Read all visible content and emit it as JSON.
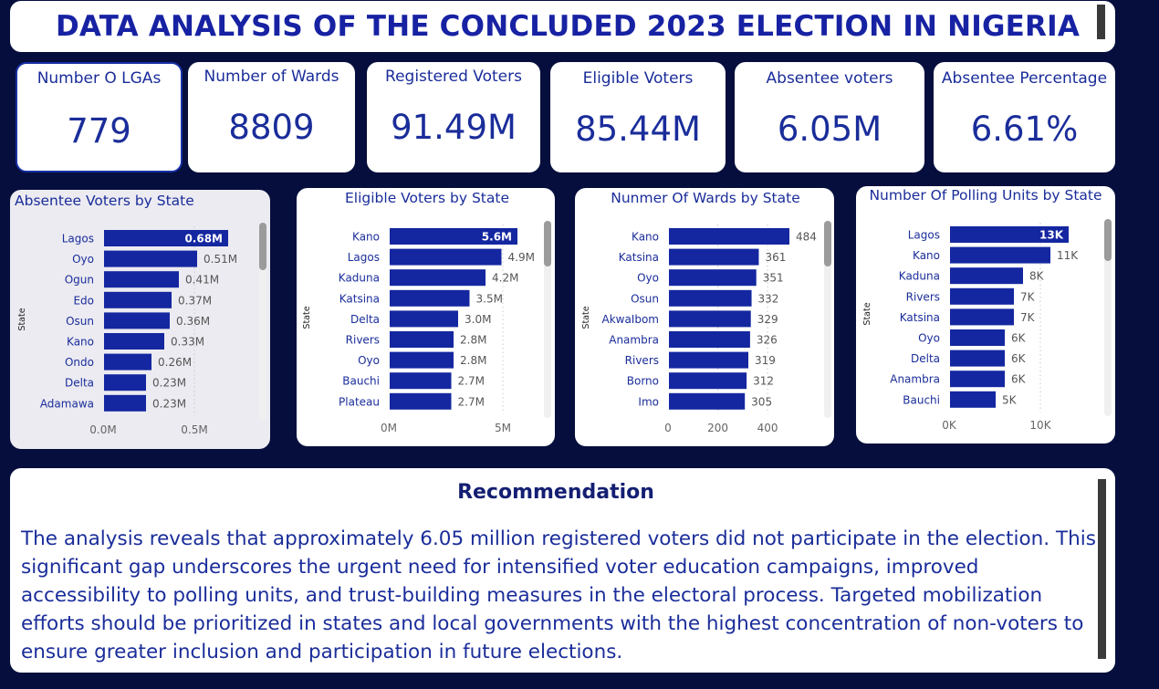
{
  "header": {
    "title": "DATA ANALYSIS OF THE CONCLUDED 2023 ELECTION IN NIGERIA"
  },
  "kpis": [
    {
      "label": "Number O LGAs",
      "value": "779"
    },
    {
      "label": "Number of Wards",
      "value": "8809"
    },
    {
      "label": "Registered Voters",
      "value": "91.49M"
    },
    {
      "label": "Eligible Voters",
      "value": "85.44M"
    },
    {
      "label": "Absentee voters",
      "value": "6.05M"
    },
    {
      "label": "Absentee Percentage",
      "value": "6.61%"
    }
  ],
  "colors": {
    "bar": "#1427a0",
    "background": "#050e3c",
    "text": "#1a2d9a"
  },
  "chart_data": [
    {
      "type": "bar",
      "orientation": "horizontal",
      "title": "Absentee Voters by State",
      "ylabel": "State",
      "categories": [
        "Lagos",
        "Oyo",
        "Ogun",
        "Edo",
        "Osun",
        "Kano",
        "Ondo",
        "Delta",
        "Adamawa"
      ],
      "values": [
        0.68,
        0.51,
        0.41,
        0.37,
        0.36,
        0.33,
        0.26,
        0.23,
        0.23
      ],
      "data_labels": [
        "0.68M",
        "0.51M",
        "0.41M",
        "0.37M",
        "0.36M",
        "0.33M",
        "0.26M",
        "0.23M",
        "0.23M"
      ],
      "xlim": [
        0,
        0.8
      ],
      "x_ticks": [
        0,
        0.5
      ],
      "x_tick_labels": [
        "0.0M",
        "0.5M"
      ]
    },
    {
      "type": "bar",
      "orientation": "horizontal",
      "title": "Eligible Voters by State",
      "ylabel": "State",
      "categories": [
        "Kano",
        "Lagos",
        "Kaduna",
        "Katsina",
        "Delta",
        "Rivers",
        "Oyo",
        "Bauchi",
        "Plateau"
      ],
      "values": [
        5.6,
        4.9,
        4.2,
        3.5,
        3.0,
        2.8,
        2.8,
        2.7,
        2.7
      ],
      "data_labels": [
        "5.6M",
        "4.9M",
        "4.2M",
        "3.5M",
        "3.0M",
        "2.8M",
        "2.8M",
        "2.7M",
        "2.7M"
      ],
      "xlim": [
        0,
        6.6
      ],
      "x_ticks": [
        0,
        5
      ],
      "x_tick_labels": [
        "0M",
        "5M"
      ]
    },
    {
      "type": "bar",
      "orientation": "horizontal",
      "title": "Nunmer Of Wards by State",
      "ylabel": "State",
      "categories": [
        "Kano",
        "Katsina",
        "Oyo",
        "Osun",
        "AkwaIbom",
        "Anambra",
        "Rivers",
        "Borno",
        "Imo"
      ],
      "values": [
        484,
        361,
        351,
        332,
        329,
        326,
        319,
        312,
        305
      ],
      "data_labels": [
        "484",
        "361",
        "351",
        "332",
        "329",
        "326",
        "319",
        "312",
        "305"
      ],
      "xlim": [
        0,
        528
      ],
      "x_ticks": [
        0,
        200,
        400
      ],
      "x_tick_labels": [
        "0",
        "200",
        "400"
      ]
    },
    {
      "type": "bar",
      "orientation": "horizontal",
      "title": "Number Of Polling Units by State",
      "ylabel": "State",
      "categories": [
        "Lagos",
        "Kano",
        "Kaduna",
        "Rivers",
        "Katsina",
        "Oyo",
        "Delta",
        "Anambra",
        "Bauchi"
      ],
      "values": [
        13,
        11,
        8,
        7,
        7,
        6,
        6,
        6,
        5
      ],
      "data_labels": [
        "13K",
        "11K",
        "8K",
        "7K",
        "7K",
        "6K",
        "6K",
        "6K",
        "5K"
      ],
      "xlim": [
        0,
        17
      ],
      "x_ticks": [
        0,
        10
      ],
      "x_tick_labels": [
        "0K",
        "10K"
      ]
    }
  ],
  "recommendation": {
    "title": "Recommendation",
    "text": "The analysis reveals that approximately 6.05 million registered voters did not participate in the election. This significant gap underscores the urgent need for intensified voter education campaigns, improved accessibility to polling units, and trust-building measures in the electoral process. Targeted mobilization efforts should be prioritized in states and local governments with the highest concentration of non-voters to ensure greater inclusion and participation in future elections."
  }
}
